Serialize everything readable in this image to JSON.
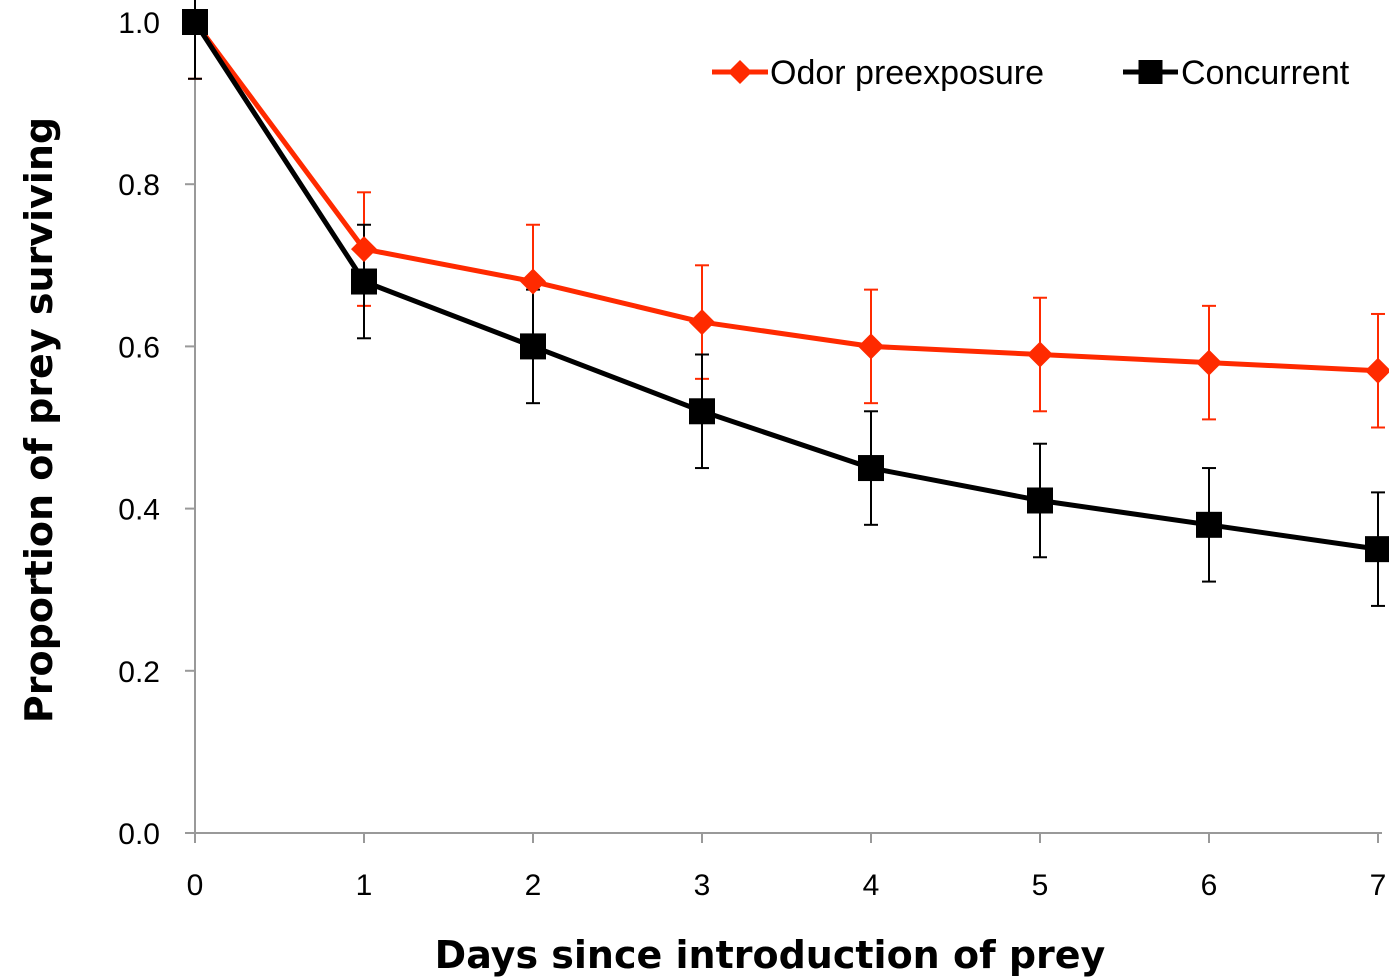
{
  "chart_data": {
    "type": "line",
    "title": "",
    "xlabel": "Days since introduction of prey",
    "ylabel": "Proportion of prey surviving",
    "x": [
      0,
      1,
      2,
      3,
      4,
      5,
      6,
      7
    ],
    "xlim": [
      0,
      7
    ],
    "ylim": [
      0,
      1
    ],
    "x_ticks": [
      "0",
      "1",
      "2",
      "3",
      "4",
      "5",
      "6",
      "7"
    ],
    "y_ticks": [
      "0.0",
      "0.2",
      "0.4",
      "0.6",
      "0.8",
      "1.0"
    ],
    "y_tick_values": [
      0,
      0.2,
      0.4,
      0.6,
      0.8,
      1.0
    ],
    "grid": false,
    "legend_position": "top-right",
    "series": [
      {
        "name": "Odor preexposure",
        "color": "#ff2a00",
        "marker": "diamond",
        "values": [
          1.0,
          0.72,
          0.68,
          0.63,
          0.6,
          0.59,
          0.58,
          0.57
        ],
        "error": [
          0.07,
          0.07,
          0.07,
          0.07,
          0.07,
          0.07,
          0.07,
          0.07
        ]
      },
      {
        "name": "Concurrent",
        "color": "#000000",
        "marker": "square",
        "values": [
          1.0,
          0.68,
          0.6,
          0.52,
          0.45,
          0.41,
          0.38,
          0.35
        ],
        "error": [
          0.07,
          0.07,
          0.07,
          0.07,
          0.07,
          0.07,
          0.07,
          0.07
        ]
      }
    ]
  }
}
